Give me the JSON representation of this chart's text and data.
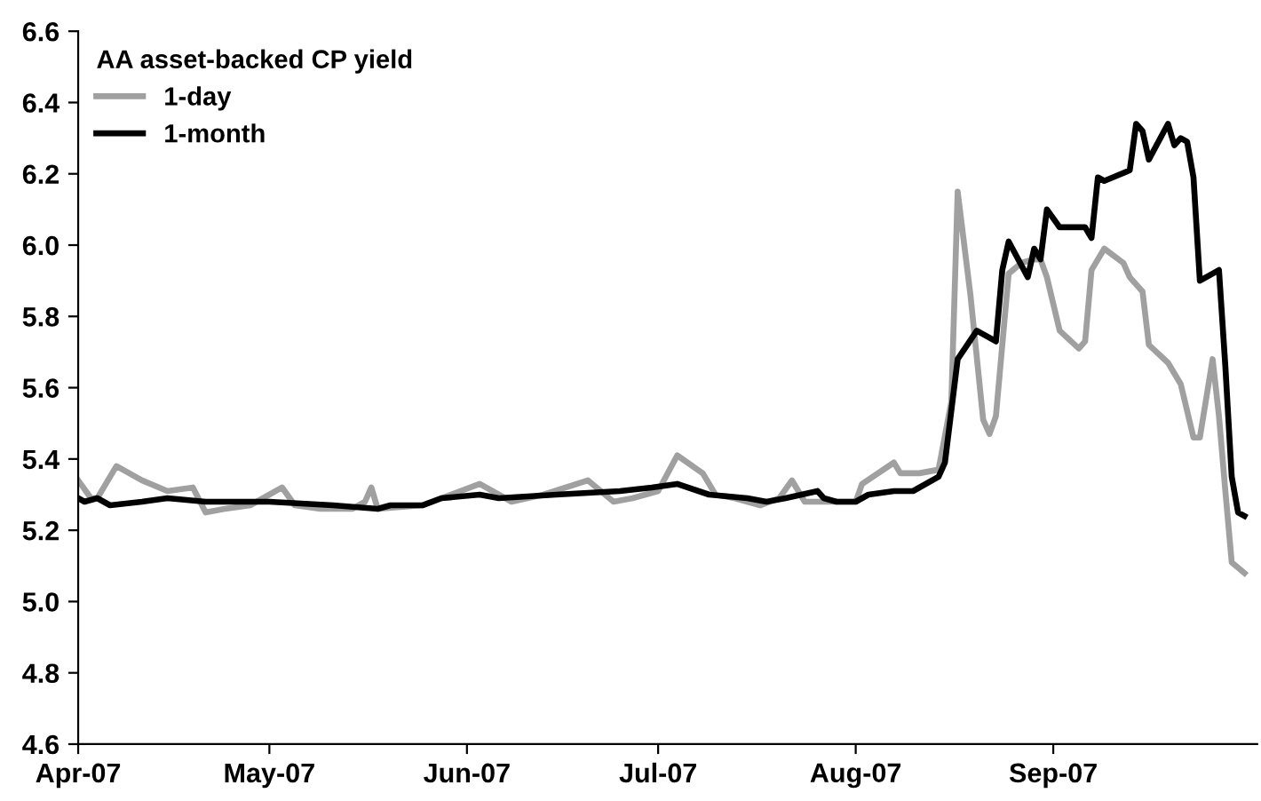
{
  "chart_data": {
    "type": "line",
    "legend_title": "AA asset-backed CP yield",
    "legend": "top left",
    "grid": false,
    "marker": "none",
    "line_style": "solid",
    "xlim": [
      "2007-04-01",
      "2007-10-03"
    ],
    "xticks": [
      {
        "value": "2007-04-01",
        "label": "Apr-07"
      },
      {
        "value": "2007-05-01",
        "label": "May-07"
      },
      {
        "value": "2007-06-01",
        "label": "Jun-07"
      },
      {
        "value": "2007-07-01",
        "label": "Jul-07"
      },
      {
        "value": "2007-08-01",
        "label": "Aug-07"
      },
      {
        "value": "2007-09-01",
        "label": "Sep-07"
      }
    ],
    "ylim": [
      4.6,
      6.6
    ],
    "yticks": [
      {
        "value": 4.6,
        "label": "4.6"
      },
      {
        "value": 4.8,
        "label": "4.8"
      },
      {
        "value": 5.0,
        "label": "5.0"
      },
      {
        "value": 5.2,
        "label": "5.2"
      },
      {
        "value": 5.4,
        "label": "5.4"
      },
      {
        "value": 5.6,
        "label": "5.6"
      },
      {
        "value": 5.8,
        "label": "5.8"
      },
      {
        "value": 6.0,
        "label": "6.0"
      },
      {
        "value": 6.2,
        "label": "6.2"
      },
      {
        "value": 6.4,
        "label": "6.4"
      },
      {
        "value": 6.6,
        "label": "6.6"
      }
    ],
    "series": [
      {
        "name": "1-day",
        "color": "#a0a0a0",
        "x": [
          "2007-04-01",
          "2007-04-03",
          "2007-04-04",
          "2007-04-07",
          "2007-04-11",
          "2007-04-15",
          "2007-04-19",
          "2007-04-21",
          "2007-04-24",
          "2007-04-28",
          "2007-05-03",
          "2007-05-05",
          "2007-05-09",
          "2007-05-14",
          "2007-05-16",
          "2007-05-17",
          "2007-05-18",
          "2007-05-25",
          "2007-06-03",
          "2007-06-08",
          "2007-06-13",
          "2007-06-20",
          "2007-06-24",
          "2007-06-27",
          "2007-07-01",
          "2007-07-04",
          "2007-07-08",
          "2007-07-10",
          "2007-07-13",
          "2007-07-17",
          "2007-07-20",
          "2007-07-22",
          "2007-07-24",
          "2007-07-29",
          "2007-08-01",
          "2007-08-02",
          "2007-08-07",
          "2007-08-08",
          "2007-08-10",
          "2007-08-11",
          "2007-08-14",
          "2007-08-16",
          "2007-08-17",
          "2007-08-19",
          "2007-08-21",
          "2007-08-22",
          "2007-08-23",
          "2007-08-25",
          "2007-08-27",
          "2007-08-29",
          "2007-08-30",
          "2007-08-31",
          "2007-09-02",
          "2007-09-05",
          "2007-09-06",
          "2007-09-07",
          "2007-09-09",
          "2007-09-12",
          "2007-09-13",
          "2007-09-15",
          "2007-09-16",
          "2007-09-19",
          "2007-09-21",
          "2007-09-23",
          "2007-09-24",
          "2007-09-26",
          "2007-09-27",
          "2007-09-28",
          "2007-09-29",
          "2007-10-01"
        ],
        "values": [
          5.34,
          5.29,
          5.29,
          5.38,
          5.34,
          5.31,
          5.32,
          5.25,
          5.26,
          5.27,
          5.32,
          5.27,
          5.26,
          5.26,
          5.28,
          5.32,
          5.26,
          5.27,
          5.33,
          5.28,
          5.3,
          5.34,
          5.28,
          5.29,
          5.31,
          5.41,
          5.36,
          5.3,
          5.29,
          5.27,
          5.29,
          5.34,
          5.28,
          5.28,
          5.28,
          5.33,
          5.39,
          5.36,
          5.36,
          5.36,
          5.37,
          5.56,
          6.15,
          5.86,
          5.51,
          5.47,
          5.52,
          5.92,
          5.95,
          5.96,
          5.96,
          5.91,
          5.76,
          5.71,
          5.73,
          5.93,
          5.99,
          5.95,
          5.91,
          5.87,
          5.72,
          5.67,
          5.61,
          5.46,
          5.46,
          5.68,
          5.52,
          5.31,
          5.11,
          5.08
        ]
      },
      {
        "name": "1-month",
        "color": "#000000",
        "x": [
          "2007-04-01",
          "2007-04-02",
          "2007-04-04",
          "2007-04-06",
          "2007-04-11",
          "2007-04-15",
          "2007-04-21",
          "2007-05-01",
          "2007-05-11",
          "2007-05-18",
          "2007-05-20",
          "2007-05-25",
          "2007-05-28",
          "2007-06-03",
          "2007-06-06",
          "2007-06-15",
          "2007-06-25",
          "2007-06-30",
          "2007-07-04",
          "2007-07-09",
          "2007-07-15",
          "2007-07-18",
          "2007-07-21",
          "2007-07-26",
          "2007-07-27",
          "2007-07-29",
          "2007-08-01",
          "2007-08-02",
          "2007-08-03",
          "2007-08-07",
          "2007-08-10",
          "2007-08-14",
          "2007-08-15",
          "2007-08-17",
          "2007-08-20",
          "2007-08-23",
          "2007-08-24",
          "2007-08-25",
          "2007-08-28",
          "2007-08-29",
          "2007-08-30",
          "2007-08-31",
          "2007-09-02",
          "2007-09-06",
          "2007-09-07",
          "2007-09-08",
          "2007-09-09",
          "2007-09-13",
          "2007-09-14",
          "2007-09-15",
          "2007-09-16",
          "2007-09-19",
          "2007-09-20",
          "2007-09-21",
          "2007-09-22",
          "2007-09-23",
          "2007-09-24",
          "2007-09-27",
          "2007-09-28",
          "2007-09-29",
          "2007-09-30",
          "2007-10-01"
        ],
        "values": [
          5.29,
          5.28,
          5.29,
          5.27,
          5.28,
          5.29,
          5.28,
          5.28,
          5.27,
          5.26,
          5.27,
          5.27,
          5.29,
          5.3,
          5.29,
          5.3,
          5.31,
          5.32,
          5.33,
          5.3,
          5.29,
          5.28,
          5.29,
          5.31,
          5.29,
          5.28,
          5.28,
          5.29,
          5.3,
          5.31,
          5.31,
          5.35,
          5.39,
          5.68,
          5.76,
          5.73,
          5.93,
          6.01,
          5.91,
          5.99,
          5.96,
          6.1,
          6.05,
          6.05,
          6.02,
          6.19,
          6.18,
          6.21,
          6.34,
          6.32,
          6.24,
          6.34,
          6.28,
          6.3,
          6.29,
          6.19,
          5.9,
          5.93,
          5.66,
          5.35,
          5.25,
          5.24
        ]
      }
    ]
  }
}
